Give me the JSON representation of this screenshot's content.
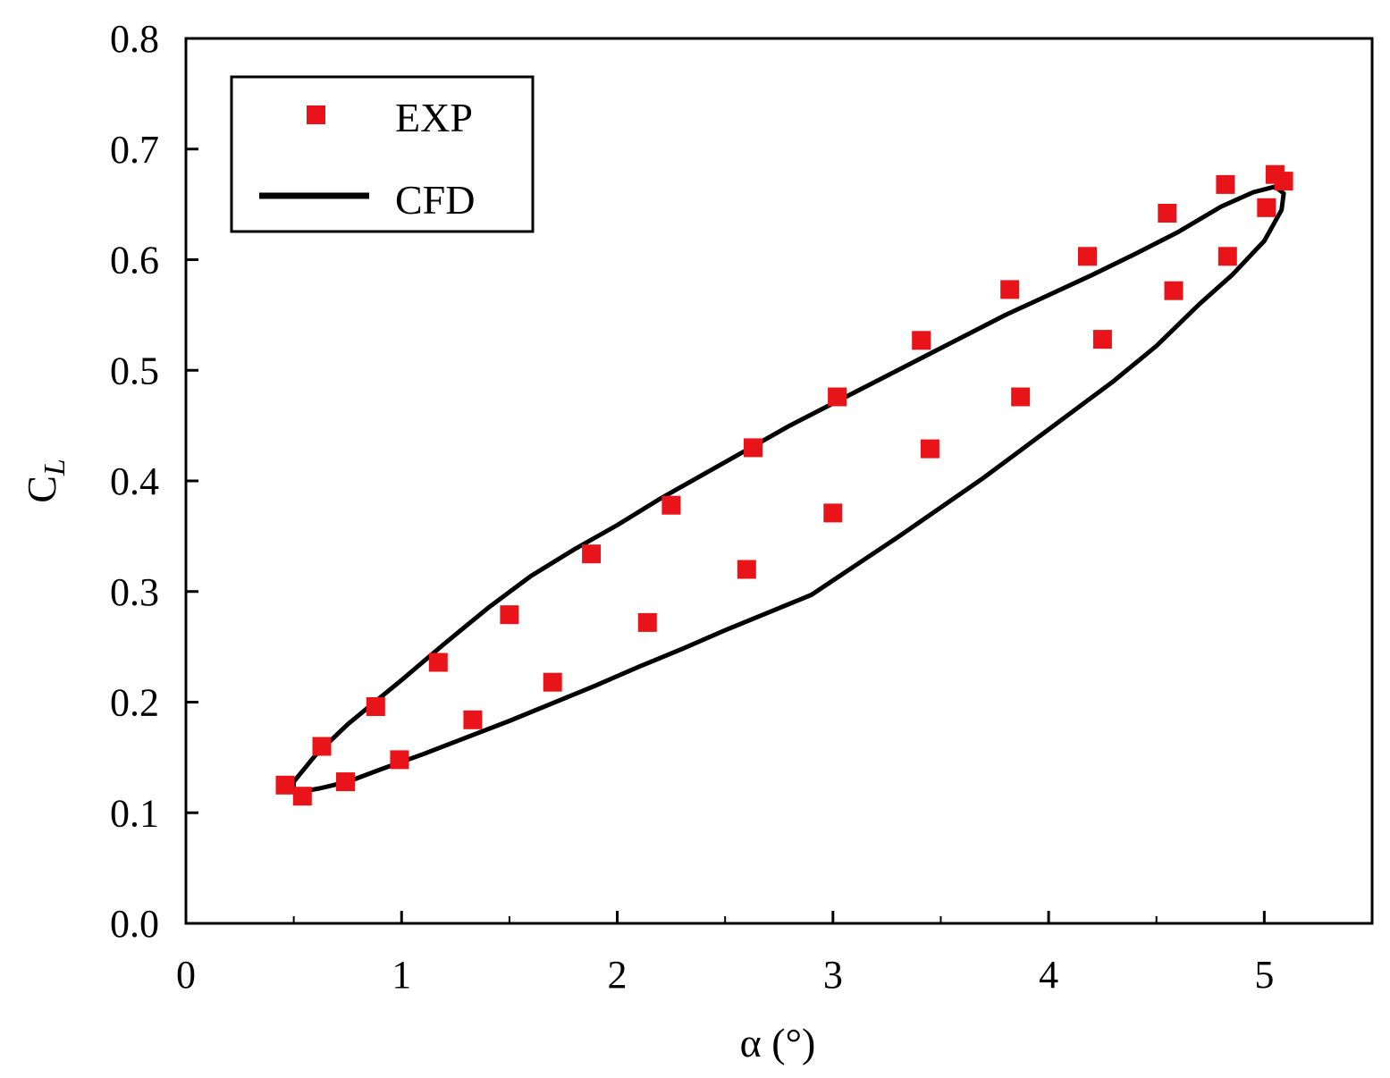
{
  "chart_data": {
    "type": "scatter",
    "xlabel": "α (°)",
    "ylabel_main": "C",
    "ylabel_sub": "L",
    "xlim": [
      0,
      5.5
    ],
    "ylim": [
      0,
      0.8
    ],
    "xticks": [
      0,
      1,
      2,
      3,
      4,
      5
    ],
    "xtick_labels": [
      "0",
      "1",
      "2",
      "3",
      "4",
      "5"
    ],
    "xminor": [
      0.5,
      1.5,
      2.5,
      3.5,
      4.5
    ],
    "yticks": [
      0.0,
      0.1,
      0.2,
      0.3,
      0.4,
      0.5,
      0.6,
      0.7,
      0.8
    ],
    "ytick_labels": [
      "0.0",
      "0.1",
      "0.2",
      "0.3",
      "0.4",
      "0.5",
      "0.6",
      "0.7",
      "0.8"
    ],
    "grid": false,
    "legend_position": "top-left",
    "series": [
      {
        "name": "EXP",
        "kind": "markers",
        "marker": "square",
        "color": "#e8141a",
        "x": [
          0.46,
          0.54,
          0.63,
          0.74,
          0.88,
          0.99,
          1.17,
          1.33,
          1.5,
          1.7,
          1.88,
          2.14,
          2.25,
          2.6,
          2.63,
          3.0,
          3.02,
          3.41,
          3.45,
          3.82,
          3.87,
          4.18,
          4.25,
          4.55,
          4.58,
          4.82,
          4.83,
          5.01,
          5.05,
          5.09
        ],
        "y": [
          0.125,
          0.115,
          0.16,
          0.128,
          0.196,
          0.148,
          0.236,
          0.184,
          0.279,
          0.218,
          0.334,
          0.272,
          0.378,
          0.32,
          0.43,
          0.371,
          0.476,
          0.527,
          0.429,
          0.573,
          0.476,
          0.603,
          0.528,
          0.642,
          0.572,
          0.668,
          0.603,
          0.647,
          0.677,
          0.671
        ]
      },
      {
        "name": "CFD",
        "kind": "line",
        "color": "#000000",
        "x": [
          0.5,
          0.6,
          0.75,
          0.9,
          1.0,
          1.2,
          1.4,
          1.6,
          1.8,
          2.0,
          2.2,
          2.4,
          2.6,
          2.8,
          3.0,
          3.2,
          3.4,
          3.6,
          3.8,
          4.0,
          4.2,
          4.4,
          4.6,
          4.8,
          4.95,
          5.05,
          5.09,
          5.08,
          5.0,
          4.85,
          4.7,
          4.5,
          4.3,
          4.1,
          3.9,
          3.7,
          3.5,
          3.3,
          3.1,
          2.9,
          2.7,
          2.5,
          2.3,
          2.1,
          1.9,
          1.7,
          1.5,
          1.3,
          1.1,
          0.9,
          0.75,
          0.62,
          0.53,
          0.5
        ],
        "y": [
          0.128,
          0.152,
          0.18,
          0.204,
          0.22,
          0.253,
          0.285,
          0.314,
          0.338,
          0.36,
          0.384,
          0.406,
          0.428,
          0.45,
          0.47,
          0.49,
          0.51,
          0.53,
          0.55,
          0.568,
          0.586,
          0.605,
          0.625,
          0.648,
          0.661,
          0.666,
          0.66,
          0.645,
          0.617,
          0.586,
          0.56,
          0.522,
          0.49,
          0.461,
          0.432,
          0.403,
          0.376,
          0.349,
          0.323,
          0.297,
          0.281,
          0.265,
          0.248,
          0.232,
          0.215,
          0.199,
          0.183,
          0.168,
          0.153,
          0.139,
          0.128,
          0.122,
          0.119,
          0.122
        ]
      }
    ]
  }
}
